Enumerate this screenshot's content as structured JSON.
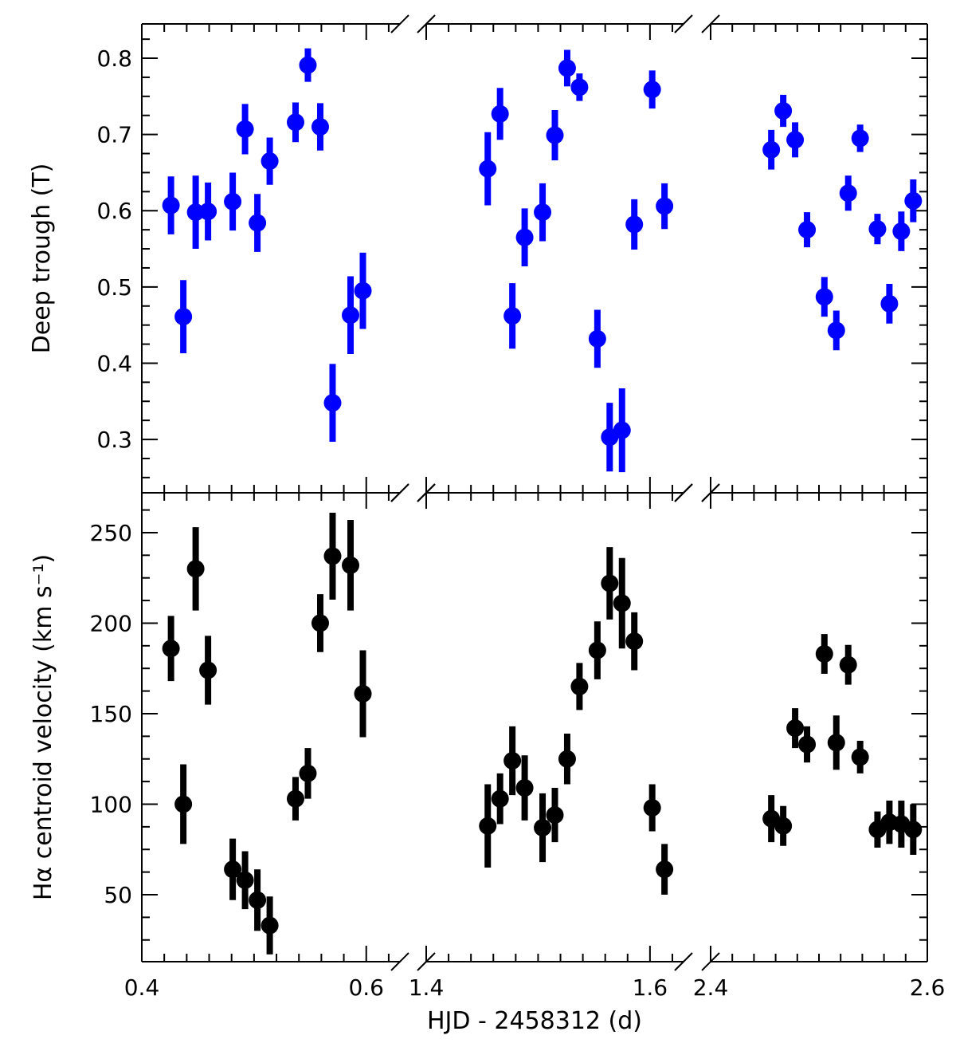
{
  "chart_data": {
    "type": "scatter",
    "xlabel": "HJD - 2458312 (d)",
    "x_segments": [
      {
        "range": [
          0.4,
          0.63
        ],
        "ticks": [
          0.4,
          0.6
        ],
        "tick_labels": [
          "0.4",
          "0.6"
        ]
      },
      {
        "range": [
          1.4,
          1.63
        ],
        "ticks": [
          1.4,
          1.6
        ],
        "tick_labels": [
          "1.4",
          "1.6"
        ]
      },
      {
        "range": [
          2.4,
          2.6
        ],
        "ticks": [
          2.4,
          2.6
        ],
        "tick_labels": [
          "2.4",
          "2.6"
        ]
      }
    ],
    "panels": [
      {
        "ylabel": "Deep trough (T)",
        "ylim": [
          0.23,
          0.845
        ],
        "yticks": [
          0.3,
          0.4,
          0.5,
          0.6,
          0.7,
          0.8
        ],
        "ytick_labels": [
          "0.3",
          "0.4",
          "0.5",
          "0.6",
          "0.7",
          "0.8"
        ],
        "color": "#0000ff",
        "points": [
          {
            "x": 0.426,
            "y": 0.607,
            "err": 0.038
          },
          {
            "x": 0.437,
            "y": 0.461,
            "err": 0.048
          },
          {
            "x": 0.448,
            "y": 0.598,
            "err": 0.048
          },
          {
            "x": 0.459,
            "y": 0.599,
            "err": 0.038
          },
          {
            "x": 0.481,
            "y": 0.612,
            "err": 0.038
          },
          {
            "x": 0.492,
            "y": 0.707,
            "err": 0.033
          },
          {
            "x": 0.503,
            "y": 0.584,
            "err": 0.038
          },
          {
            "x": 0.514,
            "y": 0.665,
            "err": 0.031
          },
          {
            "x": 0.537,
            "y": 0.716,
            "err": 0.026
          },
          {
            "x": 0.548,
            "y": 0.791,
            "err": 0.022
          },
          {
            "x": 0.559,
            "y": 0.71,
            "err": 0.031
          },
          {
            "x": 0.57,
            "y": 0.348,
            "err": 0.051
          },
          {
            "x": 0.586,
            "y": 0.463,
            "err": 0.051
          },
          {
            "x": 0.597,
            "y": 0.495,
            "err": 0.05
          },
          {
            "x": 1.455,
            "y": 0.655,
            "err": 0.048
          },
          {
            "x": 1.466,
            "y": 0.727,
            "err": 0.034
          },
          {
            "x": 1.477,
            "y": 0.462,
            "err": 0.043
          },
          {
            "x": 1.488,
            "y": 0.565,
            "err": 0.038
          },
          {
            "x": 1.504,
            "y": 0.598,
            "err": 0.038
          },
          {
            "x": 1.515,
            "y": 0.699,
            "err": 0.033
          },
          {
            "x": 1.526,
            "y": 0.787,
            "err": 0.024
          },
          {
            "x": 1.537,
            "y": 0.762,
            "err": 0.018
          },
          {
            "x": 1.553,
            "y": 0.432,
            "err": 0.038
          },
          {
            "x": 1.564,
            "y": 0.303,
            "err": 0.045
          },
          {
            "x": 1.575,
            "y": 0.312,
            "err": 0.055
          },
          {
            "x": 1.586,
            "y": 0.582,
            "err": 0.033
          },
          {
            "x": 1.602,
            "y": 0.759,
            "err": 0.025
          },
          {
            "x": 1.613,
            "y": 0.606,
            "err": 0.03
          },
          {
            "x": 2.456,
            "y": 0.68,
            "err": 0.026
          },
          {
            "x": 2.467,
            "y": 0.731,
            "err": 0.021
          },
          {
            "x": 2.478,
            "y": 0.693,
            "err": 0.023
          },
          {
            "x": 2.489,
            "y": 0.575,
            "err": 0.023
          },
          {
            "x": 2.505,
            "y": 0.487,
            "err": 0.026
          },
          {
            "x": 2.516,
            "y": 0.443,
            "err": 0.026
          },
          {
            "x": 2.527,
            "y": 0.623,
            "err": 0.023
          },
          {
            "x": 2.538,
            "y": 0.695,
            "err": 0.018
          },
          {
            "x": 2.554,
            "y": 0.576,
            "err": 0.02
          },
          {
            "x": 2.565,
            "y": 0.478,
            "err": 0.026
          },
          {
            "x": 2.576,
            "y": 0.573,
            "err": 0.026
          },
          {
            "x": 2.587,
            "y": 0.613,
            "err": 0.028
          }
        ]
      },
      {
        "ylabel": "Hα centroid velocity (km s⁻¹)",
        "ylim": [
          13,
          272
        ],
        "yticks": [
          50,
          100,
          150,
          200,
          250
        ],
        "ytick_labels": [
          "50",
          "100",
          "150",
          "200",
          "250"
        ],
        "color": "#000000",
        "points": [
          {
            "x": 0.426,
            "y": 186,
            "err": 18
          },
          {
            "x": 0.437,
            "y": 100,
            "err": 22
          },
          {
            "x": 0.448,
            "y": 230,
            "err": 23
          },
          {
            "x": 0.459,
            "y": 174,
            "err": 19
          },
          {
            "x": 0.481,
            "y": 64,
            "err": 17
          },
          {
            "x": 0.492,
            "y": 58,
            "err": 16
          },
          {
            "x": 0.503,
            "y": 47,
            "err": 17
          },
          {
            "x": 0.514,
            "y": 33,
            "err": 16
          },
          {
            "x": 0.537,
            "y": 103,
            "err": 12
          },
          {
            "x": 0.548,
            "y": 117,
            "err": 14
          },
          {
            "x": 0.559,
            "y": 200,
            "err": 16
          },
          {
            "x": 0.57,
            "y": 237,
            "err": 24
          },
          {
            "x": 0.586,
            "y": 232,
            "err": 25
          },
          {
            "x": 0.597,
            "y": 161,
            "err": 24
          },
          {
            "x": 1.455,
            "y": 88,
            "err": 23
          },
          {
            "x": 1.466,
            "y": 103,
            "err": 14
          },
          {
            "x": 1.477,
            "y": 124,
            "err": 19
          },
          {
            "x": 1.488,
            "y": 109,
            "err": 18
          },
          {
            "x": 1.504,
            "y": 87,
            "err": 19
          },
          {
            "x": 1.515,
            "y": 94,
            "err": 15
          },
          {
            "x": 1.526,
            "y": 125,
            "err": 14
          },
          {
            "x": 1.537,
            "y": 165,
            "err": 13
          },
          {
            "x": 1.553,
            "y": 185,
            "err": 16
          },
          {
            "x": 1.564,
            "y": 222,
            "err": 20
          },
          {
            "x": 1.575,
            "y": 211,
            "err": 25
          },
          {
            "x": 1.586,
            "y": 190,
            "err": 16
          },
          {
            "x": 1.602,
            "y": 98,
            "err": 13
          },
          {
            "x": 1.613,
            "y": 64,
            "err": 14
          },
          {
            "x": 2.456,
            "y": 92,
            "err": 13
          },
          {
            "x": 2.467,
            "y": 88,
            "err": 11
          },
          {
            "x": 2.478,
            "y": 142,
            "err": 11
          },
          {
            "x": 2.489,
            "y": 133,
            "err": 10
          },
          {
            "x": 2.505,
            "y": 183,
            "err": 11
          },
          {
            "x": 2.516,
            "y": 134,
            "err": 15
          },
          {
            "x": 2.527,
            "y": 177,
            "err": 11
          },
          {
            "x": 2.538,
            "y": 126,
            "err": 9
          },
          {
            "x": 2.554,
            "y": 86,
            "err": 10
          },
          {
            "x": 2.565,
            "y": 90,
            "err": 12
          },
          {
            "x": 2.576,
            "y": 89,
            "err": 13
          },
          {
            "x": 2.587,
            "y": 86,
            "err": 14
          }
        ]
      }
    ]
  }
}
